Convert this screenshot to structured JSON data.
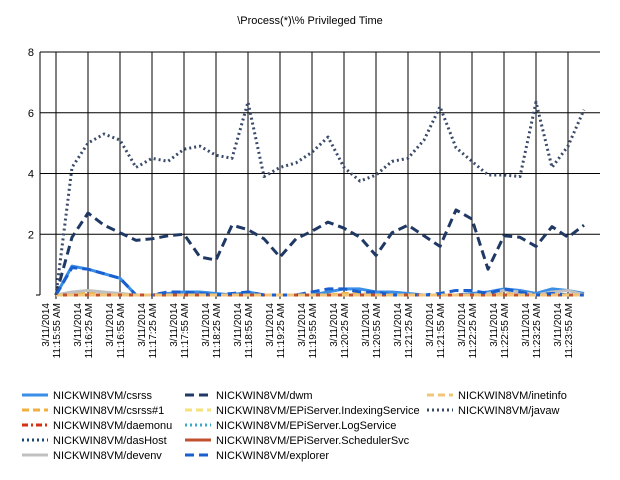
{
  "chart_data": {
    "type": "line",
    "title": "\\Process(*)\\% Privileged Time",
    "xlabel": "",
    "ylabel": "",
    "ylim": [
      0,
      8
    ],
    "yticks": [
      2,
      4,
      6,
      8
    ],
    "grid": true,
    "legend_position": "bottom",
    "categories": [
      "3/11/2014 11:15:55 AM",
      "3/11/2014 11:16:25 AM",
      "3/11/2014 11:16:55 AM",
      "3/11/2014 11:17:25 AM",
      "3/11/2014 11:17:55 AM",
      "3/11/2014 11:18:25 AM",
      "3/11/2014 11:18:55 AM",
      "3/11/2014 11:19:25 AM",
      "3/11/2014 11:19:55 AM",
      "3/11/2014 11:20:25 AM",
      "3/11/2014 11:20:55 AM",
      "3/11/2014 11:21:25 AM",
      "3/11/2014 11:21:55 AM",
      "3/11/2014 11:22:25 AM",
      "3/11/2014 11:22:55 AM",
      "3/11/2014 11:23:25 AM",
      "3/11/2014 11:23:55 AM"
    ],
    "x": [
      0,
      0.5,
      1,
      1.5,
      2,
      2.5,
      3,
      3.5,
      4,
      4.5,
      5,
      5.5,
      6,
      6.5,
      7,
      7.5,
      8,
      8.5,
      9,
      9.5,
      10,
      10.5,
      11,
      11.5,
      12,
      12.5,
      13,
      13.5,
      14,
      14.5,
      15,
      15.5,
      16,
      16.5
    ],
    "series": [
      {
        "name": "NICKWIN8VM/csrss",
        "color": "#3a8ee6",
        "dash": "solid",
        "values": [
          0,
          0.95,
          0.85,
          0.7,
          0.55,
          0,
          0,
          0.05,
          0.1,
          0.1,
          0.05,
          0,
          0.1,
          0,
          0,
          0,
          0,
          0.1,
          0.2,
          0.2,
          0.1,
          0.1,
          0.05,
          0,
          0,
          0,
          0.05,
          0.1,
          0.2,
          0.15,
          0.05,
          0.2,
          0.15,
          0.05
        ]
      },
      {
        "name": "NICKWIN8VM/csrss#1",
        "color": "#f0b040",
        "dash": "dash",
        "values": [
          0,
          0.05,
          0.1,
          0.05,
          0.05,
          0,
          0,
          0,
          0,
          0,
          0,
          0,
          0,
          0,
          0,
          0,
          0,
          0,
          0.05,
          0.05,
          0,
          0,
          0,
          0,
          0,
          0,
          0,
          0,
          0.05,
          0,
          0,
          0.05,
          0,
          0
        ]
      },
      {
        "name": "NICKWIN8VM/daemonu",
        "color": "#d83010",
        "dash": "dashdot",
        "values": [
          0,
          0,
          0,
          0,
          0,
          0,
          0,
          0,
          0,
          0,
          0,
          0,
          0,
          0,
          0,
          0,
          0,
          0,
          0,
          0,
          0,
          0,
          0,
          0,
          0,
          0,
          0,
          0,
          0,
          0,
          0,
          0,
          0,
          0
        ]
      },
      {
        "name": "NICKWIN8VM/dasHost",
        "color": "#1a4a7a",
        "dash": "dot",
        "values": [
          0,
          0,
          0,
          0,
          0,
          0,
          0,
          0,
          0,
          0,
          0,
          0,
          0,
          0,
          0,
          0,
          0,
          0,
          0,
          0,
          0,
          0,
          0,
          0,
          0,
          0,
          0,
          0,
          0,
          0,
          0,
          0,
          0,
          0
        ]
      },
      {
        "name": "NICKWIN8VM/devenv",
        "color": "#c0c0c0",
        "dash": "solid",
        "values": [
          0,
          0.1,
          0.15,
          0.1,
          0.05,
          0,
          0,
          0,
          0,
          0,
          0,
          0,
          0,
          0,
          0,
          0,
          0,
          0,
          0,
          0,
          0,
          0,
          0,
          0,
          0,
          0,
          0,
          0.05,
          0.15,
          0.1,
          0,
          0.1,
          0.15,
          0
        ]
      },
      {
        "name": "NICKWIN8VM/dwm",
        "color": "#1f3864",
        "dash": "longdash",
        "values": [
          0,
          1.9,
          2.7,
          2.3,
          2.05,
          1.8,
          1.85,
          1.95,
          2.0,
          1.25,
          1.15,
          2.3,
          2.15,
          1.85,
          1.25,
          1.85,
          2.1,
          2.4,
          2.2,
          1.9,
          1.3,
          2.05,
          2.3,
          1.95,
          1.6,
          2.8,
          2.5,
          0.85,
          1.95,
          1.9,
          1.6,
          2.25,
          1.9,
          2.3
        ]
      },
      {
        "name": "NICKWIN8VM/EPiServer.IndexingService",
        "color": "#f5e27a",
        "dash": "dash",
        "values": [
          0,
          0,
          0,
          0,
          0,
          0,
          0,
          0,
          0,
          0,
          0,
          0,
          0,
          0,
          0,
          0,
          0,
          0,
          0,
          0,
          0,
          0,
          0,
          0,
          0,
          0,
          0,
          0,
          0,
          0,
          0,
          0,
          0,
          0
        ]
      },
      {
        "name": "NICKWIN8VM/EPiServer.LogService",
        "color": "#3aa8c8",
        "dash": "dot",
        "values": [
          0,
          0,
          0,
          0,
          0,
          0,
          0,
          0,
          0,
          0,
          0,
          0,
          0,
          0,
          0,
          0,
          0,
          0,
          0,
          0,
          0,
          0,
          0,
          0,
          0,
          0,
          0,
          0,
          0,
          0,
          0,
          0,
          0,
          0
        ]
      },
      {
        "name": "NICKWIN8VM/EPiServer.SchedulerSvc",
        "color": "#c05030",
        "dash": "solid",
        "values": [
          0,
          0,
          0,
          0,
          0,
          0,
          0,
          0,
          0,
          0,
          0,
          0,
          0,
          0,
          0,
          0,
          0,
          0,
          0,
          0,
          0,
          0,
          0,
          0,
          0,
          0,
          0,
          0,
          0,
          0,
          0,
          0,
          0,
          0
        ]
      },
      {
        "name": "NICKWIN8VM/explorer",
        "color": "#1a5fd0",
        "dash": "longdash",
        "values": [
          0,
          0.9,
          0.85,
          0.7,
          0.55,
          0,
          0,
          0.1,
          0.1,
          0.05,
          0,
          0.05,
          0.1,
          0,
          0,
          0,
          0.1,
          0.2,
          0.2,
          0.1,
          0.1,
          0,
          0,
          0,
          0.05,
          0.15,
          0.15,
          0.05,
          0.2,
          0.1,
          0,
          0.05,
          0,
          0
        ]
      },
      {
        "name": "NICKWIN8VM/inetinfo",
        "color": "#f2c67a",
        "dash": "dash",
        "values": [
          0,
          0,
          0,
          0,
          0,
          0,
          0,
          0,
          0,
          0,
          0,
          0,
          0,
          0,
          0,
          0,
          0,
          0,
          0,
          0,
          0,
          0,
          0,
          0,
          0,
          0,
          0,
          0,
          0,
          0,
          0,
          0,
          0,
          0
        ]
      },
      {
        "name": "NICKWIN8VM/javaw",
        "color": "#3a4a6a",
        "dash": "dot",
        "values": [
          0,
          4.2,
          5.0,
          5.3,
          5.1,
          4.2,
          4.5,
          4.4,
          4.8,
          4.9,
          4.6,
          4.5,
          6.35,
          3.9,
          4.2,
          4.35,
          4.7,
          5.2,
          4.2,
          3.75,
          3.95,
          4.4,
          4.5,
          5.1,
          6.2,
          4.85,
          4.4,
          3.95,
          3.95,
          3.9,
          6.35,
          4.2,
          4.9,
          6.1
        ]
      }
    ]
  }
}
